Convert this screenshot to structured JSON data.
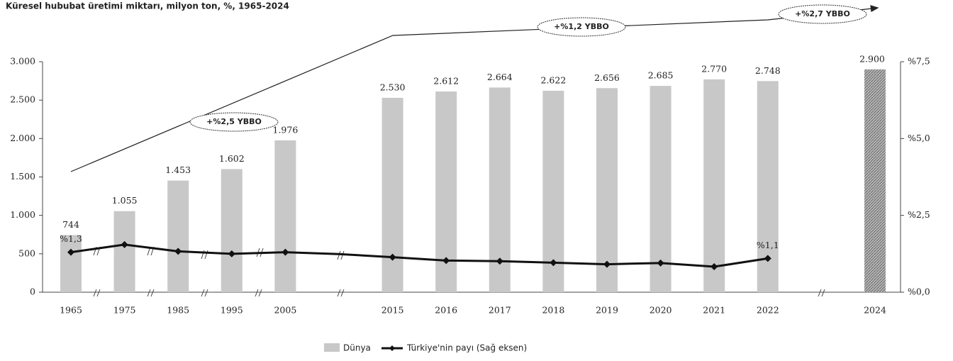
{
  "chart_data": {
    "type": "bar",
    "title": "Küresel hububat üretimi miktarı, milyon ton, %, 1965-2024",
    "categories": [
      "1965",
      "1975",
      "1985",
      "1995",
      "2005",
      null,
      "2015",
      "2016",
      "2017",
      "2018",
      "2019",
      "2020",
      "2021",
      "2022",
      null,
      "2024"
    ],
    "series": [
      {
        "name": "Dünya",
        "color": "#c8c8c8",
        "values": [
          744,
          1055,
          1453,
          1602,
          1976,
          null,
          2530,
          2612,
          2664,
          2622,
          2656,
          2685,
          2770,
          2748,
          null,
          2900
        ],
        "value_labels": [
          "744",
          "1.055",
          "1.453",
          "1.602",
          "1.976",
          null,
          "2.530",
          "2.612",
          "2.664",
          "2.622",
          "2.656",
          "2.685",
          "2.770",
          "2.748",
          null,
          "2.900"
        ]
      },
      {
        "name": "Türkiye'nin payı (Sağ eksen)",
        "color": "#111111",
        "type": "line",
        "axis": "y2",
        "values": [
          1.3,
          1.55,
          1.33,
          1.25,
          1.3,
          1.24,
          1.14,
          1.03,
          1.01,
          0.96,
          0.91,
          0.95,
          0.83,
          1.1,
          null,
          null
        ],
        "value_labels": [
          "%1,3",
          null,
          null,
          null,
          null,
          null,
          null,
          null,
          null,
          null,
          null,
          null,
          null,
          "%1,1",
          null,
          null
        ]
      }
    ],
    "ylim": [
      0,
      3000
    ],
    "yticks": [
      0,
      500,
      {
        "value": 1000,
        "label": "1.000"
      },
      {
        "value": 1500,
        "label": "1.500"
      },
      {
        "value": 2000,
        "label": "2.000"
      },
      {
        "value": 2500,
        "label": "2.500"
      },
      {
        "value": 3000,
        "label": "3.000"
      }
    ],
    "y2lim": [
      0,
      7.5
    ],
    "y2ticks": [
      {
        "value": 0,
        "label": "%0,0"
      },
      {
        "value": 2.5,
        "label": "%2,5"
      },
      {
        "value": 5,
        "label": "%5,0"
      },
      {
        "value": 7.5,
        "label": "%7,5"
      }
    ],
    "annotations": [
      "+%2,5 YBBO",
      "+%1,2 YBBO",
      "+%2,7 YBBO"
    ],
    "legend": "bottom"
  }
}
